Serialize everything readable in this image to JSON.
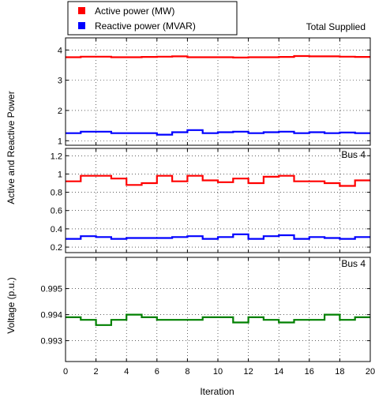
{
  "chart_data": [
    {
      "type": "line",
      "title": "Total Supplied",
      "ylim": [
        0.85,
        4.4
      ],
      "yticks": [
        1,
        2,
        3,
        4
      ],
      "xlim": [
        0,
        20
      ],
      "step": true,
      "grid": true,
      "series": [
        {
          "name": "Active power (MW)",
          "color": "#ff0000",
          "x": [
            0,
            1,
            2,
            3,
            4,
            5,
            6,
            7,
            8,
            9,
            10,
            11,
            12,
            13,
            14,
            15,
            16,
            17,
            18,
            19,
            20
          ],
          "values": [
            3.76,
            3.78,
            3.78,
            3.76,
            3.76,
            3.77,
            3.78,
            3.79,
            3.76,
            3.76,
            3.76,
            3.75,
            3.76,
            3.76,
            3.77,
            3.8,
            3.79,
            3.79,
            3.78,
            3.77,
            3.77
          ]
        },
        {
          "name": "Reactive power (MVAR)",
          "color": "#0000ff",
          "x": [
            0,
            1,
            2,
            3,
            4,
            5,
            6,
            7,
            8,
            9,
            10,
            11,
            12,
            13,
            14,
            15,
            16,
            17,
            18,
            19,
            20
          ],
          "values": [
            1.25,
            1.3,
            1.3,
            1.25,
            1.25,
            1.25,
            1.2,
            1.28,
            1.35,
            1.25,
            1.28,
            1.3,
            1.25,
            1.28,
            1.3,
            1.25,
            1.28,
            1.25,
            1.27,
            1.25,
            1.25
          ]
        }
      ]
    },
    {
      "type": "line",
      "title": "Bus 4",
      "ylim": [
        0.14,
        1.28
      ],
      "yticks": [
        0.2,
        0.4,
        0.6,
        0.8,
        1,
        1.2
      ],
      "xlim": [
        0,
        20
      ],
      "step": true,
      "grid": true,
      "series": [
        {
          "name": "Active power (MW)",
          "color": "#ff0000",
          "x": [
            0,
            1,
            2,
            3,
            4,
            5,
            6,
            7,
            8,
            9,
            10,
            11,
            12,
            13,
            14,
            15,
            16,
            17,
            18,
            19,
            20
          ],
          "values": [
            0.92,
            0.98,
            0.98,
            0.95,
            0.88,
            0.9,
            0.98,
            0.92,
            0.98,
            0.93,
            0.91,
            0.95,
            0.9,
            0.97,
            0.98,
            0.92,
            0.92,
            0.9,
            0.87,
            0.93,
            0.95
          ]
        },
        {
          "name": "Reactive power (MVAR)",
          "color": "#0000ff",
          "x": [
            0,
            1,
            2,
            3,
            4,
            5,
            6,
            7,
            8,
            9,
            10,
            11,
            12,
            13,
            14,
            15,
            16,
            17,
            18,
            19,
            20
          ],
          "values": [
            0.29,
            0.32,
            0.31,
            0.29,
            0.3,
            0.3,
            0.3,
            0.31,
            0.32,
            0.29,
            0.31,
            0.34,
            0.29,
            0.32,
            0.33,
            0.29,
            0.31,
            0.3,
            0.29,
            0.31,
            0.31
          ]
        }
      ]
    },
    {
      "type": "line",
      "title": "Bus 4",
      "ylim": [
        0.9922,
        0.9962
      ],
      "yticks": [
        0.993,
        0.994,
        0.995
      ],
      "ytick_labels": [
        "0.993",
        "0.994",
        "0.995"
      ],
      "xlim": [
        0,
        20
      ],
      "xticks": [
        0,
        2,
        4,
        6,
        8,
        10,
        12,
        14,
        16,
        18,
        20
      ],
      "step": true,
      "grid": true,
      "series": [
        {
          "name": "",
          "color": "#008000",
          "x": [
            0,
            1,
            2,
            3,
            4,
            5,
            6,
            7,
            8,
            9,
            10,
            11,
            12,
            13,
            14,
            15,
            16,
            17,
            18,
            19,
            20
          ],
          "values": [
            0.9939,
            0.9938,
            0.9936,
            0.9938,
            0.994,
            0.9939,
            0.9938,
            0.9938,
            0.9938,
            0.9939,
            0.9939,
            0.9937,
            0.9939,
            0.9938,
            0.9937,
            0.9938,
            0.9938,
            0.994,
            0.9938,
            0.9939,
            0.9939
          ]
        }
      ]
    }
  ],
  "legend": {
    "items": [
      {
        "label": "Active power (MW)",
        "color": "#ff0000"
      },
      {
        "label": "Reactive power (MVAR)",
        "color": "#0000ff"
      }
    ]
  },
  "labels": {
    "power_ylabel": "Active and Reactive Power",
    "voltage_ylabel": "Voltage (p.u.)",
    "xlabel": "Iteration"
  }
}
